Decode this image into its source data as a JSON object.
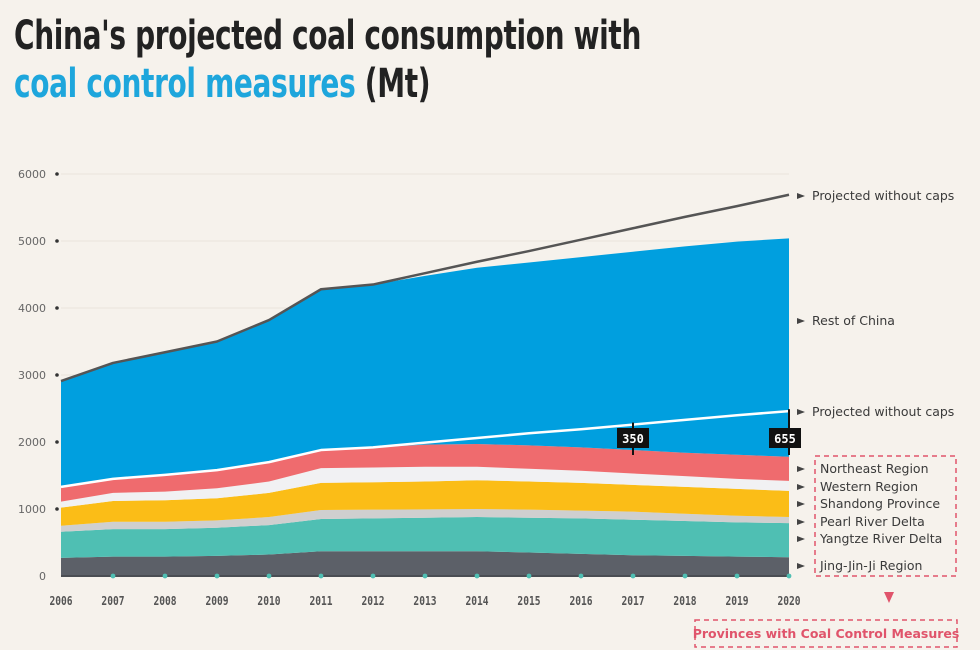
{
  "title": {
    "line1": "China's projected coal consumption with",
    "line2_accent": "coal control measures",
    "line2_rest": " (Mt)"
  },
  "colors": {
    "background": "#f6f2ec",
    "accent": "#1ea6dc",
    "rest_of_china": "#009fdf",
    "northeast": "#ef6b6e",
    "western": "#f1f1f3",
    "shandong": "#fbbd17",
    "pearl": "#cfcfcf",
    "yangtze": "#4fbfb3",
    "jingjinji": "#5c6068",
    "projected_total_line": "#555555",
    "projected_provinces_line": "#ffffff",
    "callout_bg": "#111111",
    "legend_box": "#e0546b"
  },
  "chart_data": {
    "type": "area",
    "stacked": true,
    "title": "China's projected coal consumption with coal control measures (Mt)",
    "xlabel": "",
    "ylabel": "Mt",
    "ylim": [
      0,
      6000
    ],
    "yticks": [
      0,
      1000,
      2000,
      3000,
      4000,
      5000,
      6000
    ],
    "grid": true,
    "categories": [
      "2006",
      "2007",
      "2008",
      "2009",
      "2010",
      "2011",
      "2012",
      "2013",
      "2014",
      "2015",
      "2016",
      "2017",
      "2018",
      "2019",
      "2020"
    ],
    "series": [
      {
        "key": "jingjinji",
        "name": "Jing-Jin-Ji Region",
        "values": [
          270,
          290,
          290,
          300,
          320,
          370,
          370,
          370,
          370,
          350,
          330,
          310,
          300,
          290,
          280
        ]
      },
      {
        "key": "yangtze",
        "name": "Yangtze River Delta",
        "values": [
          390,
          410,
          410,
          420,
          440,
          480,
          490,
          500,
          510,
          520,
          530,
          530,
          520,
          510,
          510
        ]
      },
      {
        "key": "pearl",
        "name": "Pearl River Delta",
        "values": [
          90,
          110,
          110,
          110,
          120,
          135,
          130,
          125,
          120,
          120,
          115,
          120,
          110,
          100,
          90
        ]
      },
      {
        "key": "shandong",
        "name": "Shandong Province",
        "values": [
          270,
          310,
          320,
          330,
          360,
          405,
          410,
          415,
          430,
          420,
          415,
          400,
          400,
          400,
          390
        ]
      },
      {
        "key": "western",
        "name": "Western Region",
        "values": [
          90,
          120,
          130,
          150,
          170,
          220,
          220,
          220,
          200,
          190,
          180,
          170,
          160,
          150,
          150
        ]
      },
      {
        "key": "northeast",
        "name": "Northeast Region",
        "values": [
          220,
          210,
          250,
          270,
          290,
          270,
          300,
          330,
          340,
          350,
          350,
          350,
          350,
          360,
          360
        ]
      },
      {
        "key": "rest_of_china",
        "name": "Rest of China",
        "values": [
          1580,
          1730,
          1830,
          1920,
          2120,
          2400,
          2430,
          2520,
          2630,
          2730,
          2840,
          2960,
          3080,
          3180,
          3260
        ]
      }
    ],
    "lines": [
      {
        "key": "projected_total",
        "name": "Projected without caps",
        "values": [
          2910,
          3180,
          3340,
          3500,
          3820,
          4280,
          4350,
          4520,
          4690,
          4850,
          5020,
          5190,
          5360,
          5520,
          5690
        ]
      },
      {
        "key": "projected_provinces",
        "name": "Projected without caps",
        "values": [
          1330,
          1450,
          1510,
          1580,
          1700,
          1880,
          1920,
          1990,
          2060,
          2130,
          2190,
          2260,
          2330,
          2400,
          2460
        ]
      }
    ],
    "annotations": [
      {
        "year": "2017",
        "label": "350"
      },
      {
        "year": "2020",
        "label": "655"
      }
    ],
    "right_labels": {
      "projected_total": "Projected without caps",
      "rest_of_china": "Rest of China",
      "projected_provinces": "Projected without caps",
      "northeast": "Northeast Region",
      "western": "Western Region",
      "shandong": "Shandong Province",
      "pearl": "Pearl River Delta",
      "yangtze": "Yangtze River Delta",
      "jingjinji": "Jing-Jin-Ji Region"
    },
    "group_label": "Provinces with Coal Control Measures"
  }
}
